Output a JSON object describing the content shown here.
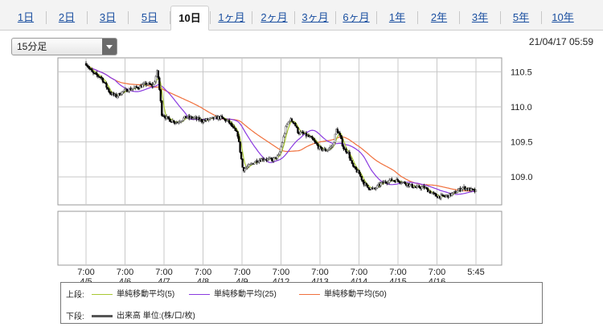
{
  "tabs": [
    "1日",
    "2日",
    "3日",
    "5日",
    "10日",
    "1ヶ月",
    "2ヶ月",
    "3ヶ月",
    "6ヶ月",
    "1年",
    "2年",
    "3年",
    "5年",
    "10年"
  ],
  "active_tab": "10日",
  "interval_select": {
    "value": "15分足"
  },
  "timestamp": "21/04/17 05:59",
  "legend": {
    "upper_label": "上段:",
    "lower_label": "下段:",
    "items": [
      {
        "name": "単純移動平均(5)",
        "color": "#a8c832"
      },
      {
        "name": "単純移動平均(25)",
        "color": "#8a3ae0"
      },
      {
        "name": "単純移動平均(50)",
        "color": "#f0703c"
      }
    ],
    "volume_label": "出来高 単位:(株/口/枚)",
    "volume_color": "#555555"
  },
  "chart_data": {
    "type": "candlestick",
    "x_ticks": [
      {
        "time": "7:00",
        "date": "4/5"
      },
      {
        "time": "7:00",
        "date": "4/6"
      },
      {
        "time": "7:00",
        "date": "4/7"
      },
      {
        "time": "7:00",
        "date": "4/8"
      },
      {
        "time": "7:00",
        "date": "4/9"
      },
      {
        "time": "7:00",
        "date": "4/12"
      },
      {
        "time": "7:00",
        "date": "4/13"
      },
      {
        "time": "7:00",
        "date": "4/14"
      },
      {
        "time": "7:00",
        "date": "4/15"
      },
      {
        "time": "7:00",
        "date": "4/16"
      },
      {
        "time": "5:45",
        "date": ""
      }
    ],
    "y_ticks": [
      110.5,
      110.0,
      109.5,
      109.0
    ],
    "ylim": [
      108.6,
      110.7
    ],
    "candle_up_color": "#4a4a4a",
    "candle_down_color": "#000000",
    "price_path": [
      [
        0.0,
        110.62
      ],
      [
        0.15,
        110.48
      ],
      [
        0.35,
        110.42
      ],
      [
        0.55,
        110.2
      ],
      [
        0.7,
        110.15
      ],
      [
        0.85,
        110.22
      ],
      [
        1.0,
        110.25
      ],
      [
        1.2,
        110.28
      ],
      [
        1.4,
        110.33
      ],
      [
        1.55,
        110.3
      ],
      [
        1.65,
        110.52
      ],
      [
        1.75,
        109.9
      ],
      [
        1.9,
        109.82
      ],
      [
        2.1,
        109.78
      ],
      [
        2.3,
        109.85
      ],
      [
        2.5,
        109.84
      ],
      [
        2.7,
        109.8
      ],
      [
        2.9,
        109.83
      ],
      [
        3.1,
        109.85
      ],
      [
        3.3,
        109.78
      ],
      [
        3.5,
        109.6
      ],
      [
        3.62,
        109.1
      ],
      [
        3.75,
        109.15
      ],
      [
        3.9,
        109.22
      ],
      [
        4.1,
        109.26
      ],
      [
        4.3,
        109.24
      ],
      [
        4.45,
        109.3
      ],
      [
        4.55,
        109.55
      ],
      [
        4.62,
        109.72
      ],
      [
        4.7,
        109.82
      ],
      [
        4.8,
        109.78
      ],
      [
        4.9,
        109.63
      ],
      [
        5.0,
        109.62
      ],
      [
        5.2,
        109.55
      ],
      [
        5.4,
        109.4
      ],
      [
        5.55,
        109.38
      ],
      [
        5.7,
        109.45
      ],
      [
        5.78,
        109.68
      ],
      [
        5.85,
        109.6
      ],
      [
        5.95,
        109.4
      ],
      [
        6.05,
        109.35
      ],
      [
        6.15,
        109.15
      ],
      [
        6.3,
        109.05
      ],
      [
        6.4,
        108.92
      ],
      [
        6.5,
        108.85
      ],
      [
        6.65,
        108.82
      ],
      [
        6.8,
        108.9
      ],
      [
        7.0,
        108.95
      ],
      [
        7.2,
        108.95
      ],
      [
        7.4,
        108.9
      ],
      [
        7.6,
        108.85
      ],
      [
        7.8,
        108.85
      ],
      [
        7.95,
        108.78
      ],
      [
        8.1,
        108.72
      ],
      [
        8.25,
        108.72
      ],
      [
        8.35,
        108.73
      ],
      [
        8.5,
        108.77
      ],
      [
        8.7,
        108.85
      ],
      [
        8.85,
        108.82
      ],
      [
        9.0,
        108.79
      ]
    ]
  }
}
